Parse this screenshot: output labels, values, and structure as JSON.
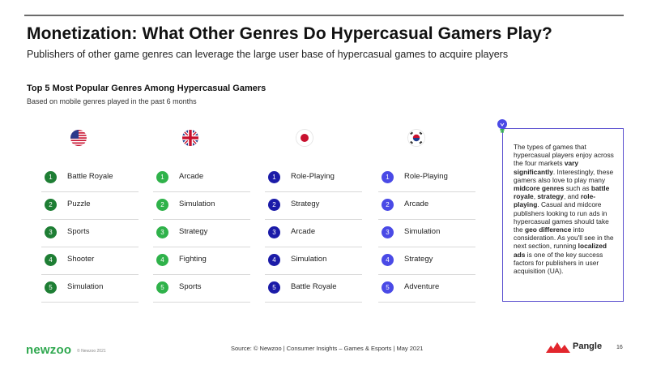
{
  "header": {
    "title": "Monetization: What Other Genres Do Hypercasual Gamers Play?",
    "subtitle": "Publishers of other game genres can leverage the large user base of hypercasual games to acquire players"
  },
  "section": {
    "title": "Top 5 Most Popular Genres Among Hypercasual Gamers",
    "subtitle": "Based on mobile genres played in the past 6 months"
  },
  "columns": [
    {
      "flag": "us-flag-icon",
      "color": "#1e7e34",
      "items": [
        {
          "rank": "1",
          "label": "Battle Royale"
        },
        {
          "rank": "2",
          "label": "Puzzle"
        },
        {
          "rank": "3",
          "label": "Sports"
        },
        {
          "rank": "4",
          "label": "Shooter"
        },
        {
          "rank": "5",
          "label": "Simulation"
        }
      ]
    },
    {
      "flag": "uk-flag-icon",
      "color": "#2fb24a",
      "items": [
        {
          "rank": "1",
          "label": "Arcade"
        },
        {
          "rank": "2",
          "label": "Simulation"
        },
        {
          "rank": "3",
          "label": "Strategy"
        },
        {
          "rank": "4",
          "label": "Fighting"
        },
        {
          "rank": "5",
          "label": "Sports"
        }
      ]
    },
    {
      "flag": "japan-flag-icon",
      "color": "#1b1ba8",
      "items": [
        {
          "rank": "1",
          "label": "Role-Playing"
        },
        {
          "rank": "2",
          "label": "Strategy"
        },
        {
          "rank": "3",
          "label": "Arcade"
        },
        {
          "rank": "4",
          "label": "Simulation"
        },
        {
          "rank": "5",
          "label": "Battle Royale"
        }
      ]
    },
    {
      "flag": "south-korea-flag-icon",
      "color": "#4a4ae6",
      "items": [
        {
          "rank": "1",
          "label": "Role-Playing"
        },
        {
          "rank": "2",
          "label": "Arcade"
        },
        {
          "rank": "3",
          "label": "Simulation"
        },
        {
          "rank": "4",
          "label": "Strategy"
        },
        {
          "rank": "5",
          "label": "Adventure"
        }
      ]
    }
  ],
  "callout": {
    "icon": "lightbulb-icon",
    "parts": [
      {
        "t": "The types of games that hypercasual players enjoy across the four markets ",
        "b": false
      },
      {
        "t": "vary significantly",
        "b": true
      },
      {
        "t": ". Interestingly, these gamers also love to play many ",
        "b": false
      },
      {
        "t": "midcore genres",
        "b": true
      },
      {
        "t": " such as ",
        "b": false
      },
      {
        "t": "battle royale",
        "b": true
      },
      {
        "t": ", ",
        "b": false
      },
      {
        "t": "strategy",
        "b": true
      },
      {
        "t": ", and ",
        "b": false
      },
      {
        "t": "role-playing",
        "b": true
      },
      {
        "t": ". Casual and midcore publishers looking to run ads in hypercasual games should take the ",
        "b": false
      },
      {
        "t": "geo difference",
        "b": true
      },
      {
        "t": " into consideration. As you'll see in the next section, running ",
        "b": false
      },
      {
        "t": "localized ads",
        "b": true
      },
      {
        "t": " is one of the key success factors for publishers in user acquisition (UA).",
        "b": false
      }
    ]
  },
  "footer": {
    "brand": "newzoo",
    "copyright": "© Newzoo 2021",
    "source": "Source: © Newzoo | Consumer Insights – Games & Esports | May 2021",
    "partner": "Pangle",
    "page": "16"
  },
  "colors": {
    "accent_border": "#5a4fcf",
    "newzoo_green": "#2fa84f"
  }
}
